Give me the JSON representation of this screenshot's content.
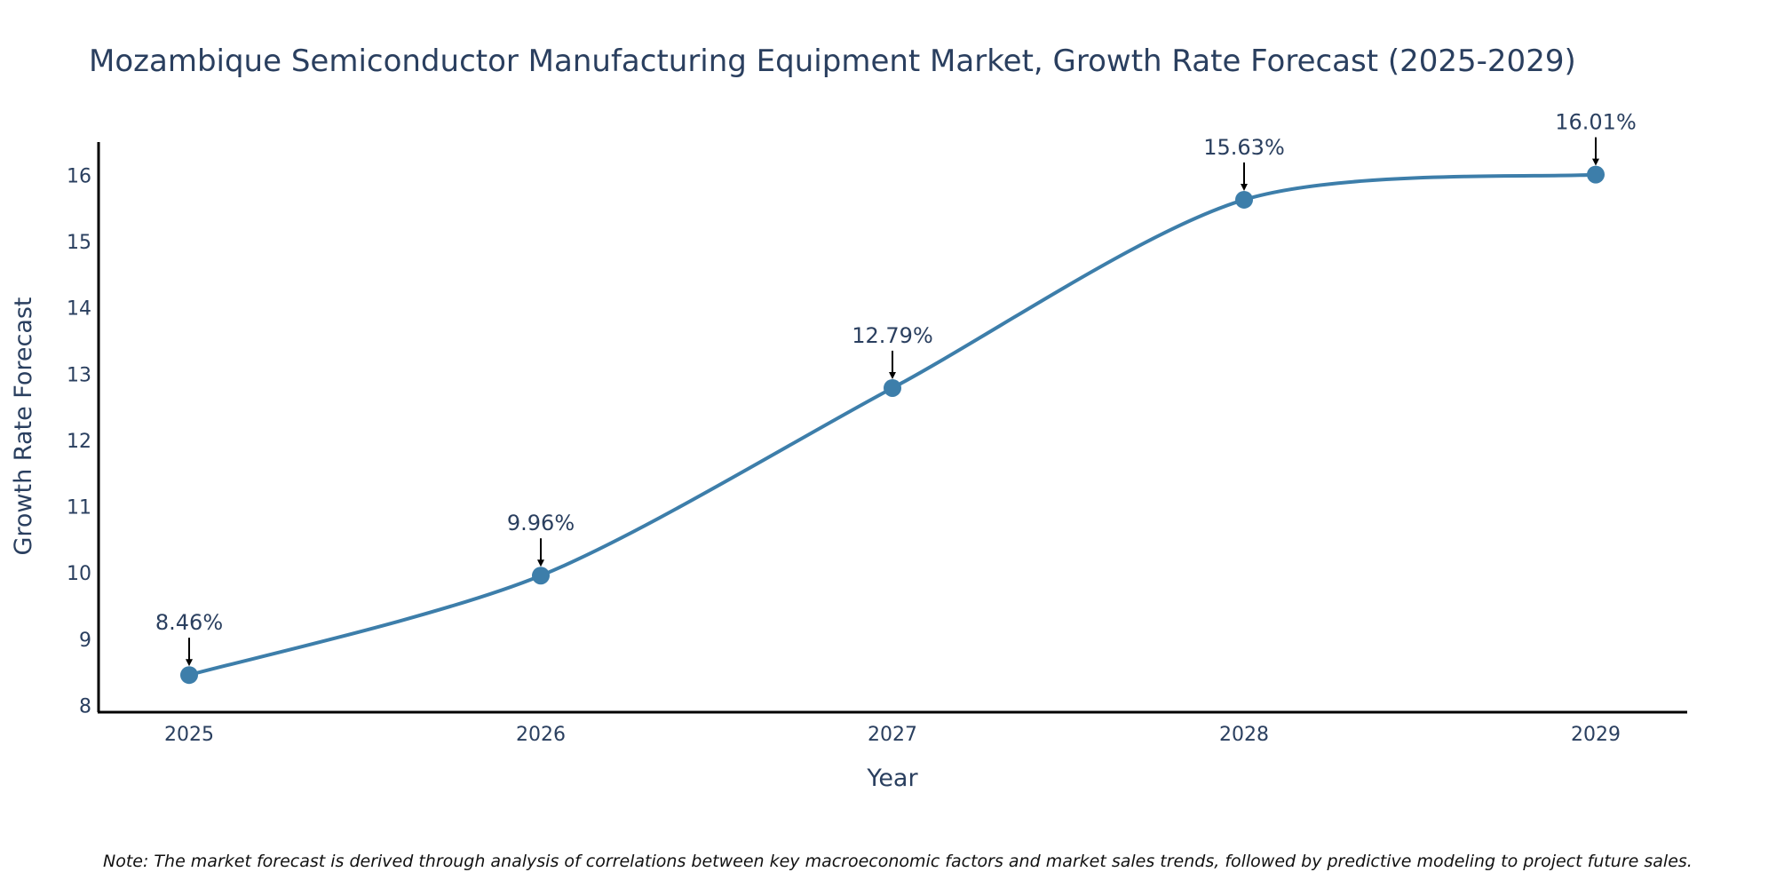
{
  "chart_data": {
    "type": "line",
    "title": "Mozambique Semiconductor Manufacturing Equipment Market, Growth Rate Forecast (2025-2029)",
    "xlabel": "Year",
    "ylabel": "Growth Rate Forecast",
    "categories": [
      "2025",
      "2026",
      "2027",
      "2028",
      "2029"
    ],
    "values": [
      8.46,
      9.96,
      12.79,
      15.63,
      16.01
    ],
    "data_labels": [
      "8.46%",
      "9.96%",
      "12.79%",
      "15.63%",
      "16.01%"
    ],
    "y_ticks": [
      "8",
      "9",
      "10",
      "11",
      "12",
      "13",
      "14",
      "15",
      "16"
    ],
    "ylim": [
      7.9,
      16.5
    ],
    "grid": false,
    "line_shape": "spline",
    "series_color": "#3d7eaa",
    "note": "Note: The market forecast is derived through analysis of correlations between key macroeconomic factors and market sales trends, followed by predictive modeling to project future sales."
  }
}
